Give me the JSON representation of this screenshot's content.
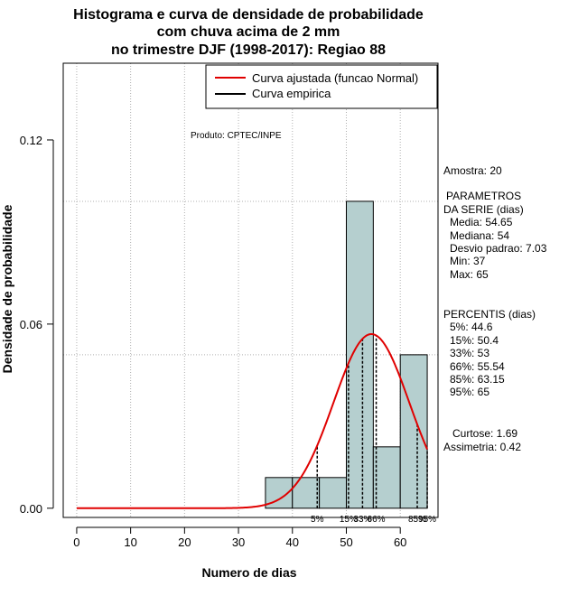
{
  "colors": {
    "bar_fill": "#b5cfcf",
    "fitted_curve": "#e00000",
    "empirical_curve": "#000000",
    "grid": "#b0b0b0"
  },
  "chart_data": {
    "type": "bar",
    "title_lines": [
      "Histograma e curva de densidade de probabilidade",
      "com chuva acima de 2 mm",
      "no trimestre DJF (1998-2017): Regiao 88"
    ],
    "xlabel": "Numero de dias",
    "ylabel": "Densidade de probabilidade",
    "xlim": [
      -2.5,
      67
    ],
    "ylim": [
      -0.003,
      0.145
    ],
    "x_ticks": [
      0,
      10,
      20,
      30,
      40,
      50,
      60
    ],
    "y_ticks": [
      0.0,
      0.06,
      0.12
    ],
    "y_tick_labels": [
      "0.00",
      "0.06",
      "0.12"
    ],
    "grid_x": [
      0,
      10,
      20,
      30,
      40,
      50,
      60
    ],
    "grid_y": [
      0.05,
      0.1
    ],
    "bins": [
      {
        "start": 35,
        "end": 40,
        "density": 0.01
      },
      {
        "start": 40,
        "end": 45,
        "density": 0.01
      },
      {
        "start": 45,
        "end": 50,
        "density": 0.01
      },
      {
        "start": 50,
        "end": 55,
        "density": 0.1
      },
      {
        "start": 55,
        "end": 60,
        "density": 0.02
      },
      {
        "start": 60,
        "end": 65,
        "density": 0.05
      }
    ],
    "fitted_normal": {
      "mean": 54.65,
      "sd": 7.03,
      "x_range": [
        0,
        65
      ]
    },
    "percentile_lines": [
      {
        "label": "5%",
        "x": 44.6
      },
      {
        "label": "15%",
        "x": 50.4
      },
      {
        "label": "33%",
        "x": 53
      },
      {
        "label": "66%",
        "x": 55.54
      },
      {
        "label": "85%",
        "x": 63.15
      },
      {
        "label": "95%",
        "x": 65
      }
    ],
    "legend": {
      "position": "top-right",
      "entries": [
        {
          "label": "Curva ajustada (funcao Normal)",
          "color": "#e00000"
        },
        {
          "label": "Curva empirica",
          "color": "#000000"
        }
      ]
    },
    "annotation": "Produto: CPTEC/INPE"
  },
  "side_panel": {
    "amostra": "Amostra: 20",
    "params_header_1": "PARAMETROS",
    "params_header_2": "DA SERIE (dias)",
    "media": "Media: 54.65",
    "mediana": "Mediana: 54",
    "desvio": "Desvio padrao: 7.03",
    "min": "Min: 37",
    "max": "Max: 65",
    "percentis_header": "PERCENTIS (dias)",
    "p5": "5%: 44.6",
    "p15": "15%: 50.4",
    "p33": "33%: 53",
    "p66": "66%: 55.54",
    "p85": "85%: 63.15",
    "p95": "95%: 65",
    "curtose": "Curtose: 1.69",
    "assimetria": "Assimetria: 0.42"
  }
}
